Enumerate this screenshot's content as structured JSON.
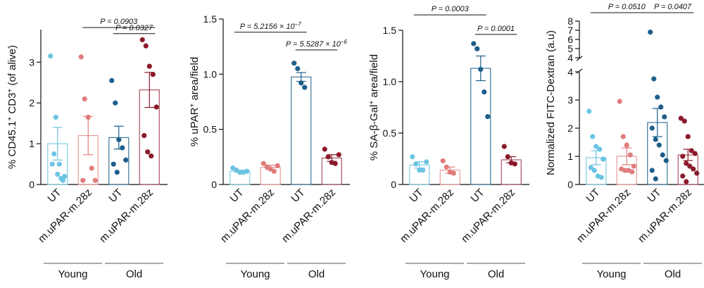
{
  "chart_data": [
    {
      "type": "bar",
      "ylabel_html": [
        "% CD45.1",
        "+",
        " CD3",
        "+",
        " (of alive)"
      ],
      "ylim": [
        0,
        3.8
      ],
      "yticks": [
        0,
        1,
        2,
        3
      ],
      "categories": [
        "UT",
        "m.uPAR-m.28z",
        "UT",
        "m.uPAR-m.28z"
      ],
      "groups": [
        {
          "label": "Young",
          "span": [
            0,
            1
          ]
        },
        {
          "label": "Old",
          "span": [
            2,
            3
          ]
        }
      ],
      "colors": [
        "#6cc4e2",
        "#e07c7c",
        "#1d5f8a",
        "#8b1a2b"
      ],
      "means": [
        1.0,
        1.2,
        1.15,
        2.32
      ],
      "sem": [
        0.4,
        0.47,
        0.28,
        0.43
      ],
      "points": [
        [
          3.15,
          0.75,
          0.25,
          0.15,
          0.2,
          0.5,
          1.65,
          0.5,
          0.1
        ],
        [
          3.13,
          2.1,
          1.65,
          0.4,
          0.1,
          0.1
        ],
        [
          2.55,
          2.0,
          1.1,
          0.9,
          0.6,
          0.5,
          0.3
        ],
        [
          3.55,
          3.4,
          2.9,
          2.7,
          1.9,
          1.2,
          0.8,
          0.7
        ]
      ],
      "pvalues": [
        {
          "text": "P = 0.0903",
          "from": 1,
          "to": 3,
          "y": 3.85
        },
        {
          "text": "P = 0.0327",
          "from": 2,
          "to": 3,
          "y": 3.7
        }
      ]
    },
    {
      "type": "bar",
      "ylabel_html": [
        "% uPAR",
        "+",
        " area/field"
      ],
      "ylim": [
        0,
        1.5
      ],
      "yticks": [
        0,
        0.5,
        1.0,
        1.5
      ],
      "yticklabels": [
        "0",
        "0.5",
        "1.0",
        "1.5"
      ],
      "categories": [
        "UT",
        "m.uPAR-m.28z",
        "UT",
        "m.uPAR-m.28z"
      ],
      "groups": [
        {
          "label": "Young",
          "span": [
            0,
            1
          ]
        },
        {
          "label": "Old",
          "span": [
            2,
            3
          ]
        }
      ],
      "colors": [
        "#6cc4e2",
        "#e07c7c",
        "#1d5f8a",
        "#8b1a2b"
      ],
      "means": [
        0.12,
        0.155,
        0.975,
        0.24
      ],
      "sem": [
        0.01,
        0.02,
        0.04,
        0.03
      ],
      "points": [
        [
          0.15,
          0.13,
          0.11,
          0.11,
          0.12
        ],
        [
          0.19,
          0.16,
          0.14,
          0.12,
          0.17
        ],
        [
          1.1,
          1.05,
          0.92,
          0.88
        ],
        [
          0.32,
          0.25,
          0.2,
          0.19,
          0.27
        ]
      ],
      "pvalues": [
        {
          "text": "P = 5.2156 × 10",
          "sup": "−7",
          "from": 0,
          "to": 2,
          "y": 1.38
        },
        {
          "text": "P = 5.5287 × 10",
          "sup": "−6",
          "from": 2,
          "to": 3,
          "y": 1.22
        }
      ]
    },
    {
      "type": "bar",
      "ylabel_html": [
        "% SA-β-Gal",
        "+",
        " area/field"
      ],
      "ylim": [
        0,
        1.5
      ],
      "yticks": [
        0,
        0.5,
        1.0,
        1.5
      ],
      "yticklabels": [
        "0",
        "0.5",
        "1.0",
        "1.5"
      ],
      "categories": [
        "UT",
        "m.uPAR-m.28z",
        "UT",
        "m.uPAR-m.28z"
      ],
      "groups": [
        {
          "label": "Young",
          "span": [
            0,
            1
          ]
        },
        {
          "label": "Old",
          "span": [
            2,
            3
          ]
        }
      ],
      "colors": [
        "#6cc4e2",
        "#e07c7c",
        "#1d5f8a",
        "#8b1a2b"
      ],
      "means": [
        0.19,
        0.14,
        1.13,
        0.24
      ],
      "sem": [
        0.03,
        0.03,
        0.12,
        0.03
      ],
      "points": [
        [
          0.27,
          0.2,
          0.14,
          0.14,
          0.22
        ],
        [
          0.23,
          0.17,
          0.12,
          0.11
        ],
        [
          1.37,
          1.32,
          1.12,
          0.9,
          0.66
        ],
        [
          0.37,
          0.27,
          0.21,
          0.2
        ]
      ],
      "pvalues": [
        {
          "text": "P = 0.0003",
          "from": 0,
          "to": 2,
          "y": 1.65
        },
        {
          "text": "P = 0.0001",
          "from": 2,
          "to": 3,
          "y": 1.46
        }
      ]
    },
    {
      "type": "bar",
      "ylabel_html": [
        "Normalized FITC-Dextran (a.u)"
      ],
      "ylim": [
        0,
        4
      ],
      "broken_axis": {
        "upper_range": [
          4,
          8
        ],
        "upper_ticks": [
          4,
          5,
          6,
          7,
          8
        ]
      },
      "yticks": [
        0,
        1,
        2,
        3,
        4
      ],
      "categories": [
        "UT",
        "m.uPAR-m.28z",
        "UT",
        "m.uPAR-m.28z"
      ],
      "groups": [
        {
          "label": "Young",
          "span": [
            0,
            1
          ]
        },
        {
          "label": "Old",
          "span": [
            2,
            3
          ]
        }
      ],
      "colors": [
        "#6cc4e2",
        "#e07c7c",
        "#1d5f8a",
        "#8b1a2b"
      ],
      "means": [
        0.95,
        1.0,
        2.2,
        1.05
      ],
      "sem": [
        0.25,
        0.3,
        0.5,
        0.2
      ],
      "points": [
        [
          2.6,
          1.7,
          1.35,
          1.25,
          0.9,
          0.6,
          0.5,
          0.3,
          0.25
        ],
        [
          2.95,
          1.7,
          1.4,
          1.05,
          0.65,
          0.55,
          0.5,
          0.5,
          0.45
        ],
        [
          6.8,
          3.75,
          3.1,
          2.75,
          2.4,
          2.0,
          1.6,
          1.4,
          1.05,
          0.85,
          0.5,
          0.2
        ],
        [
          2.35,
          2.25,
          1.7,
          1.2,
          1.1,
          1.0,
          0.75,
          0.65,
          0.55,
          0.4,
          0.3,
          0.1
        ]
      ],
      "pvalues": [
        {
          "text": "P = 0.0510",
          "from": 0,
          "to": 2,
          "y": 8.4
        },
        {
          "text": "P = 0.0407",
          "from": 2,
          "to": 3,
          "y": 8.4
        }
      ]
    }
  ]
}
